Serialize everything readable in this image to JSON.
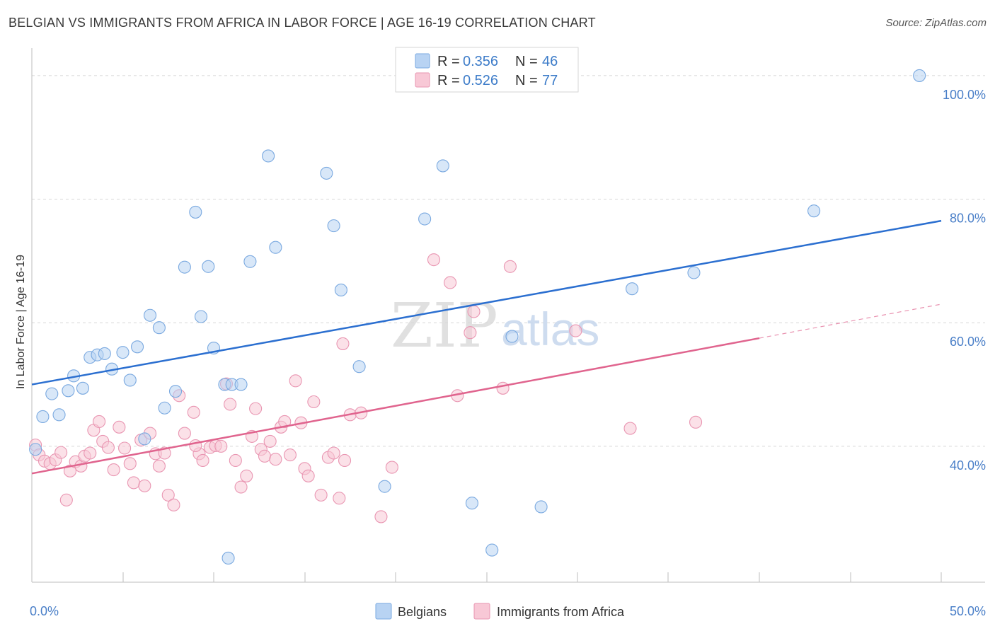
{
  "title": "BELGIAN VS IMMIGRANTS FROM AFRICA IN LABOR FORCE | AGE 16-19 CORRELATION CHART",
  "source": "Source: ZipAtlas.com",
  "watermark": {
    "zip": "ZIP",
    "atlas": "atlas"
  },
  "colors": {
    "belgians_fill": "#b8d3f3",
    "belgians_stroke": "#7aa9e0",
    "belgians_line": "#2b6fd0",
    "africa_fill": "#f8c8d6",
    "africa_stroke": "#e996b2",
    "africa_line": "#e0648e",
    "tick_label": "#4a7fc8",
    "grid": "#d8d8d8"
  },
  "legend": {
    "belgians": {
      "r_label": "R =",
      "r_value": "0.356",
      "n_label": "N =",
      "n_value": "46"
    },
    "africa": {
      "r_label": "R =",
      "r_value": "0.526",
      "n_label": "N =",
      "n_value": "77"
    }
  },
  "chart_data": {
    "type": "scatter",
    "title": "BELGIAN VS IMMIGRANTS FROM AFRICA IN LABOR FORCE | AGE 16-19 CORRELATION CHART",
    "xlabel": "",
    "ylabel": "In Labor Force | Age 16-19",
    "xlim": [
      0,
      50
    ],
    "ylim": [
      18,
      104
    ],
    "x_tick_labels": [
      {
        "value": 0,
        "label": "0.0%"
      },
      {
        "value": 50,
        "label": "50.0%"
      }
    ],
    "x_minor_ticks": [
      5,
      10,
      15,
      20,
      25,
      30,
      35,
      40,
      45,
      50
    ],
    "y_ticks": [
      {
        "value": 40,
        "label": "40.0%"
      },
      {
        "value": 60,
        "label": "60.0%"
      },
      {
        "value": 80,
        "label": "80.0%"
      },
      {
        "value": 100,
        "label": "100.0%"
      }
    ],
    "bottom_legend": [
      "Belgians",
      "Immigrants from Africa"
    ],
    "series": [
      {
        "name": "Belgians",
        "r": 0.356,
        "n": 46,
        "trend": {
          "x0": 0,
          "y0": 50.0,
          "x1": 50,
          "y1": 76.5
        },
        "points": [
          [
            0.2,
            39.5
          ],
          [
            0.6,
            44.8
          ],
          [
            1.1,
            48.5
          ],
          [
            1.5,
            45.1
          ],
          [
            2.0,
            49.0
          ],
          [
            2.3,
            51.4
          ],
          [
            2.8,
            49.4
          ],
          [
            3.2,
            54.4
          ],
          [
            3.6,
            54.8
          ],
          [
            4.0,
            55.0
          ],
          [
            4.4,
            52.5
          ],
          [
            5.0,
            55.2
          ],
          [
            5.4,
            50.7
          ],
          [
            5.8,
            56.1
          ],
          [
            6.2,
            41.2
          ],
          [
            6.5,
            61.2
          ],
          [
            7.0,
            59.2
          ],
          [
            7.3,
            46.2
          ],
          [
            7.9,
            48.9
          ],
          [
            8.4,
            69.0
          ],
          [
            9.0,
            77.9
          ],
          [
            9.3,
            61.0
          ],
          [
            9.7,
            69.1
          ],
          [
            10.0,
            55.9
          ],
          [
            10.6,
            50.0
          ],
          [
            11.0,
            50.0
          ],
          [
            11.5,
            50.0
          ],
          [
            12.0,
            69.9
          ],
          [
            13.0,
            87.0
          ],
          [
            13.4,
            72.2
          ],
          [
            16.2,
            84.2
          ],
          [
            16.6,
            75.7
          ],
          [
            17.0,
            65.3
          ],
          [
            18.0,
            52.9
          ],
          [
            19.4,
            33.5
          ],
          [
            21.6,
            76.8
          ],
          [
            22.6,
            85.4
          ],
          [
            24.2,
            30.8
          ],
          [
            25.3,
            23.2
          ],
          [
            26.4,
            57.8
          ],
          [
            28.0,
            30.2
          ],
          [
            33.0,
            65.5
          ],
          [
            36.4,
            68.1
          ],
          [
            43.0,
            78.1
          ],
          [
            48.8,
            100.0
          ],
          [
            10.8,
            21.9
          ]
        ]
      },
      {
        "name": "Immigrants from Africa",
        "r": 0.526,
        "n": 77,
        "trend": {
          "x0": 0,
          "y0": 35.6,
          "x1": 40,
          "y1": 57.5,
          "dash_x1": 50,
          "dash_y1": 63.0
        },
        "points": [
          [
            0.2,
            40.2
          ],
          [
            0.4,
            38.6
          ],
          [
            0.7,
            37.6
          ],
          [
            1.0,
            37.2
          ],
          [
            1.3,
            37.8
          ],
          [
            1.6,
            39.0
          ],
          [
            1.9,
            31.3
          ],
          [
            2.1,
            36.0
          ],
          [
            2.4,
            37.5
          ],
          [
            2.7,
            36.8
          ],
          [
            2.9,
            38.4
          ],
          [
            3.2,
            38.9
          ],
          [
            3.4,
            42.6
          ],
          [
            3.7,
            44.0
          ],
          [
            3.9,
            40.8
          ],
          [
            4.2,
            39.8
          ],
          [
            4.5,
            36.2
          ],
          [
            4.8,
            43.1
          ],
          [
            5.1,
            39.7
          ],
          [
            5.4,
            37.2
          ],
          [
            5.6,
            34.1
          ],
          [
            6.0,
            41.0
          ],
          [
            6.2,
            33.6
          ],
          [
            6.5,
            42.1
          ],
          [
            6.8,
            38.8
          ],
          [
            7.0,
            36.8
          ],
          [
            7.3,
            38.9
          ],
          [
            7.5,
            32.1
          ],
          [
            7.8,
            30.5
          ],
          [
            8.1,
            48.2
          ],
          [
            8.4,
            42.1
          ],
          [
            8.9,
            45.5
          ],
          [
            9.2,
            38.8
          ],
          [
            9.4,
            37.7
          ],
          [
            9.8,
            39.8
          ],
          [
            10.1,
            40.1
          ],
          [
            10.4,
            40.0
          ],
          [
            10.7,
            50.1
          ],
          [
            10.9,
            46.8
          ],
          [
            11.2,
            37.7
          ],
          [
            11.5,
            33.4
          ],
          [
            11.8,
            35.2
          ],
          [
            12.1,
            41.6
          ],
          [
            12.3,
            46.1
          ],
          [
            12.6,
            39.5
          ],
          [
            12.8,
            38.4
          ],
          [
            13.1,
            40.8
          ],
          [
            13.4,
            37.9
          ],
          [
            13.7,
            43.1
          ],
          [
            13.9,
            44.0
          ],
          [
            14.2,
            38.6
          ],
          [
            14.5,
            50.6
          ],
          [
            14.8,
            43.8
          ],
          [
            15.0,
            36.4
          ],
          [
            15.2,
            35.2
          ],
          [
            15.5,
            47.2
          ],
          [
            15.9,
            32.1
          ],
          [
            16.3,
            38.2
          ],
          [
            16.6,
            38.9
          ],
          [
            16.9,
            31.6
          ],
          [
            17.2,
            37.7
          ],
          [
            17.5,
            45.1
          ],
          [
            18.1,
            45.4
          ],
          [
            19.2,
            28.6
          ],
          [
            19.8,
            36.6
          ],
          [
            22.1,
            70.2
          ],
          [
            23.0,
            66.5
          ],
          [
            23.4,
            48.2
          ],
          [
            24.1,
            58.4
          ],
          [
            24.3,
            61.8
          ],
          [
            25.9,
            49.4
          ],
          [
            26.3,
            69.1
          ],
          [
            29.9,
            58.7
          ],
          [
            32.9,
            42.9
          ],
          [
            36.5,
            43.9
          ],
          [
            17.1,
            56.6
          ],
          [
            9.0,
            40.1
          ]
        ]
      }
    ]
  }
}
